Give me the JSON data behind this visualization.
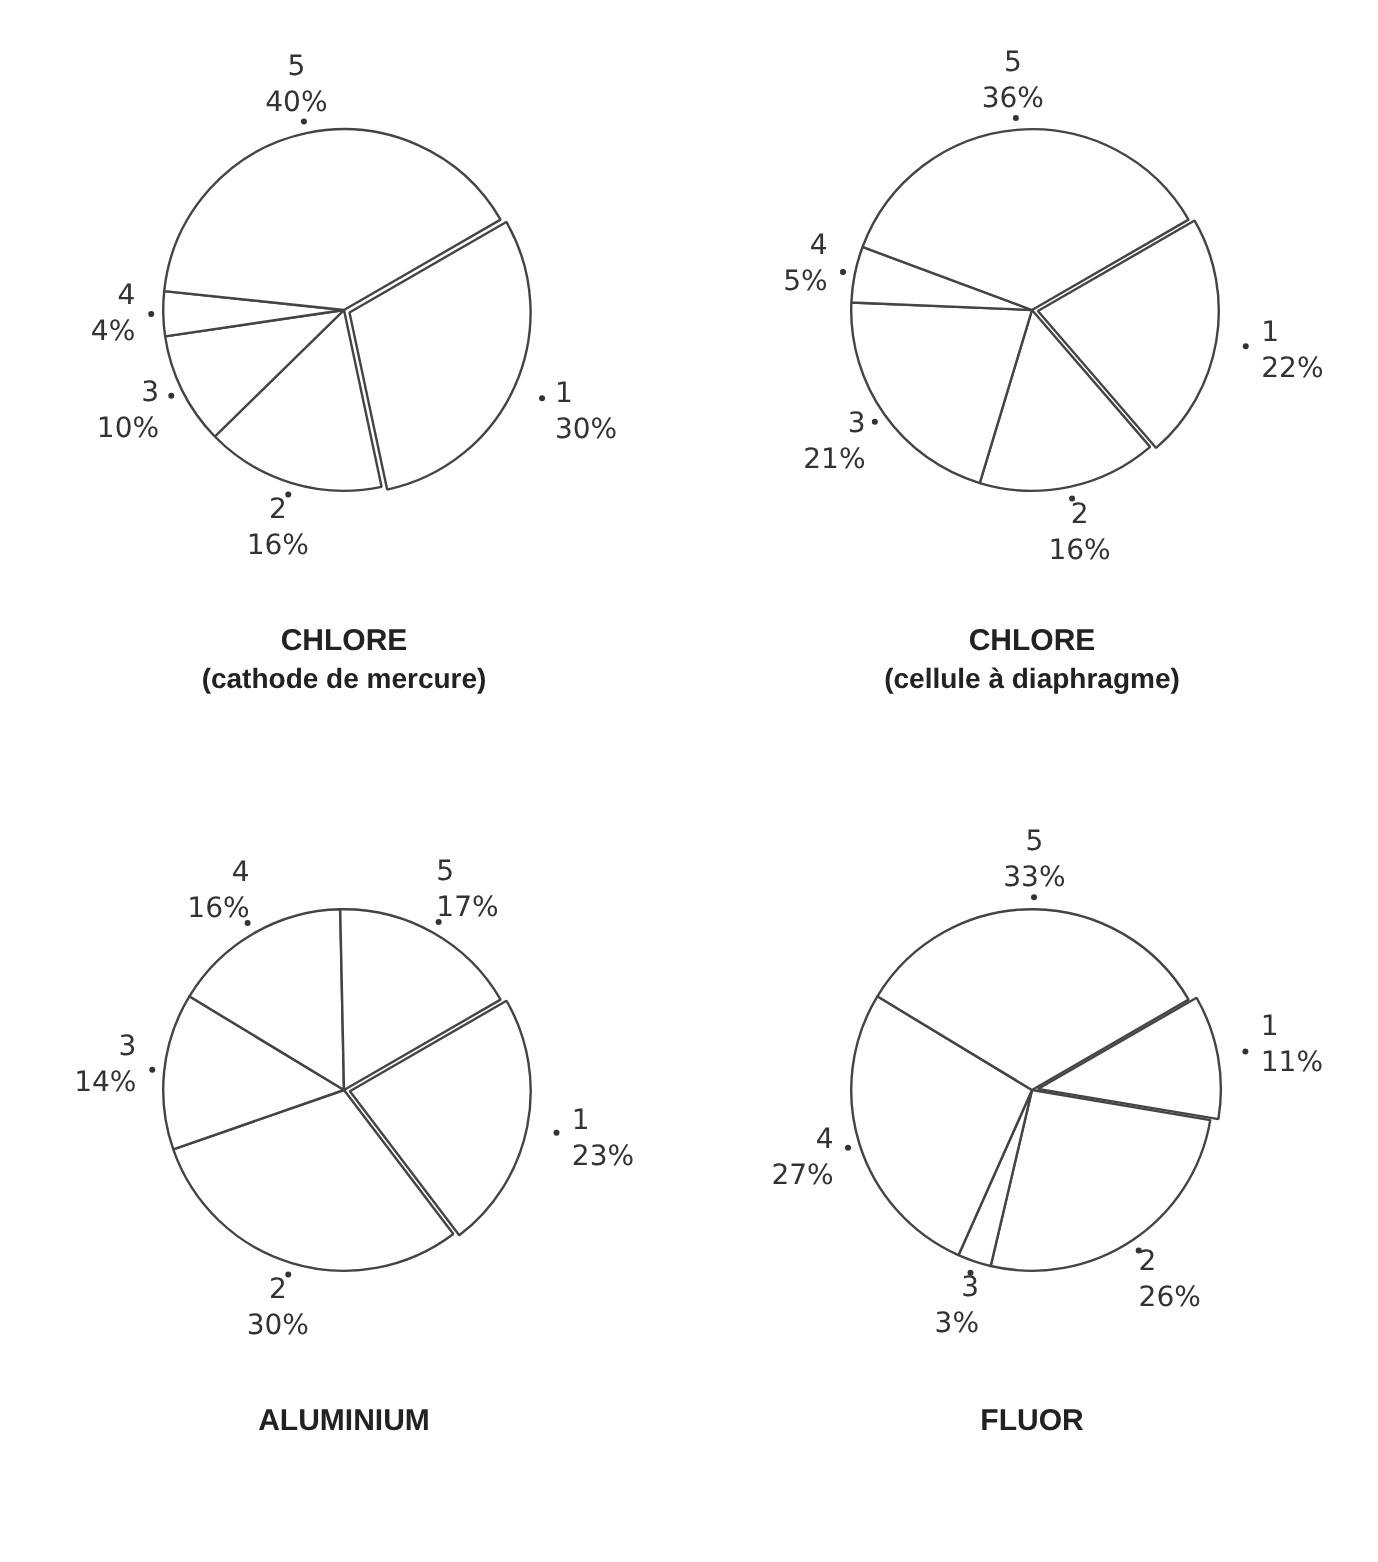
{
  "chart_data": [
    {
      "type": "pie",
      "title": "CHLORE",
      "subtitle": "(cathode de mercure)",
      "categories": [
        "1",
        "2",
        "3",
        "4",
        "5"
      ],
      "values": [
        30,
        16,
        10,
        4,
        40
      ],
      "value_labels": [
        "30%",
        "16%",
        "10%",
        "4%",
        "40%"
      ],
      "colors": [
        "#ffffff",
        "#ffffff",
        "#ffffff",
        "#ffffff",
        "#ffffff"
      ],
      "legend": false
    },
    {
      "type": "pie",
      "title": "CHLORE",
      "subtitle": "(cellule à diaphragme)",
      "categories": [
        "1",
        "2",
        "3",
        "4",
        "5"
      ],
      "values": [
        22,
        16,
        21,
        5,
        36
      ],
      "value_labels": [
        "22%",
        "16%",
        "21%",
        "5%",
        "36%"
      ],
      "colors": [
        "#ffffff",
        "#ffffff",
        "#ffffff",
        "#ffffff",
        "#ffffff"
      ],
      "legend": false
    },
    {
      "type": "pie",
      "title": "ALUMINIUM",
      "categories": [
        "1",
        "2",
        "3",
        "4",
        "5"
      ],
      "values": [
        23,
        30,
        14,
        16,
        17
      ],
      "value_labels": [
        "23%",
        "30%",
        "14%",
        "16%",
        "17%"
      ],
      "colors": [
        "#ffffff",
        "#ffffff",
        "#ffffff",
        "#ffffff",
        "#ffffff"
      ],
      "legend": false
    },
    {
      "type": "pie",
      "title": "FLUOR",
      "categories": [
        "1",
        "2",
        "3",
        "4",
        "5"
      ],
      "values": [
        11,
        26,
        3,
        27,
        33
      ],
      "value_labels": [
        "11%",
        "26%",
        "3%",
        "27%",
        "33%"
      ],
      "colors": [
        "#ffffff",
        "#ffffff",
        "#ffffff",
        "#ffffff",
        "#ffffff"
      ],
      "legend": false
    }
  ]
}
